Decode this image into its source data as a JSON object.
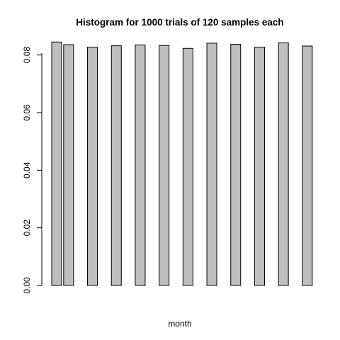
{
  "chart_data": {
    "type": "bar",
    "title": "Histogram for 1000 trials of 120 samples each",
    "xlabel": "month",
    "ylabel": "",
    "ylim": [
      0,
      0.09
    ],
    "yticks": [
      "0.00",
      "0.02",
      "0.04",
      "0.06",
      "0.08"
    ],
    "ytick_values": [
      0,
      0.02,
      0.04,
      0.06,
      0.08
    ],
    "bar_color": "#bebebe",
    "values": [
      0.0845,
      0.0836,
      0.0,
      0.0827,
      0.0,
      0.0832,
      0.0,
      0.0835,
      0.0,
      0.0833,
      0.0,
      0.0823,
      0.0,
      0.0841,
      0.0,
      0.0837,
      0.0,
      0.0827,
      0.0,
      0.0842,
      0.0,
      0.0831
    ],
    "grid": false,
    "legend": "none"
  }
}
